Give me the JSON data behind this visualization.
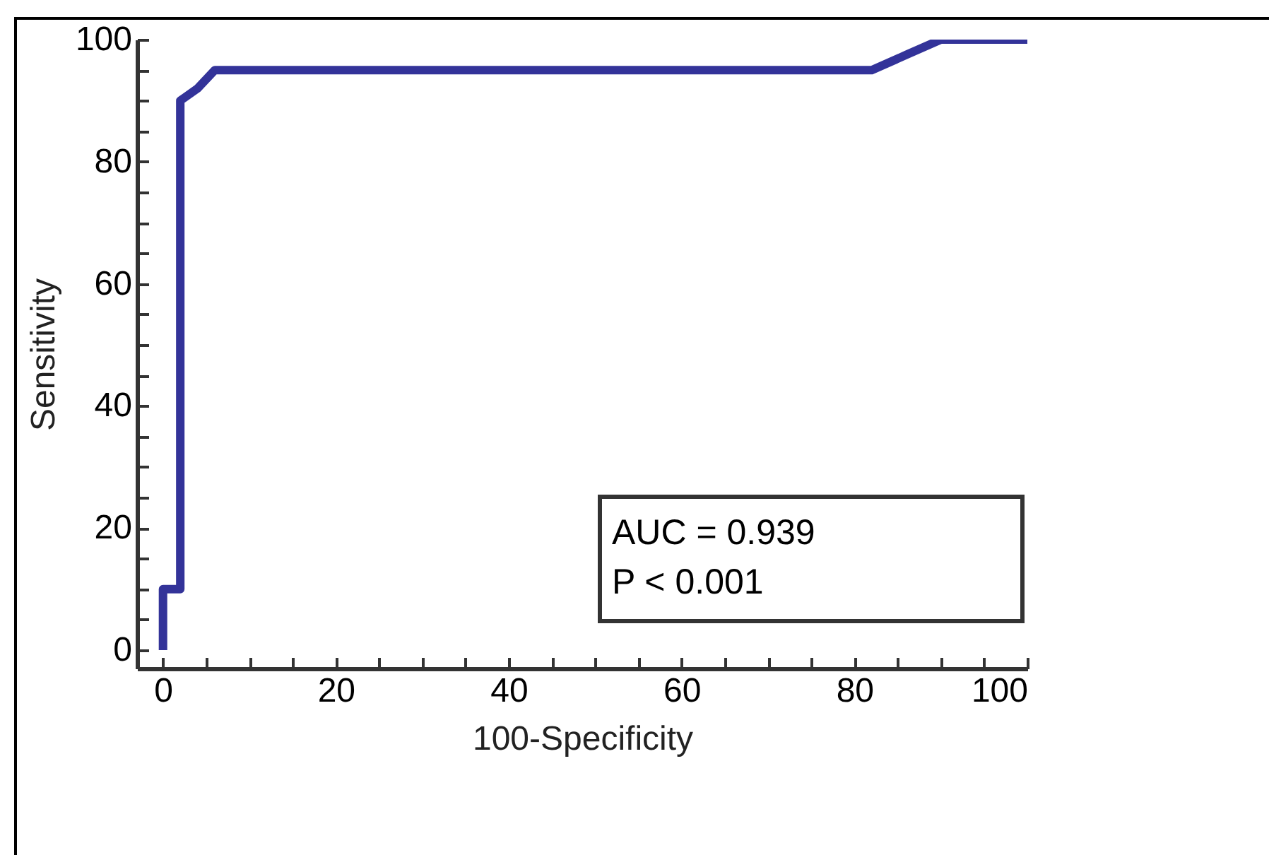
{
  "chart_data": {
    "type": "line",
    "xlabel": "100-Specificity",
    "ylabel": "Sensitivity",
    "x": [
      0,
      0,
      2,
      2,
      4,
      6,
      82,
      86,
      90,
      100
    ],
    "series": [
      {
        "color": "#333399",
        "values": [
          0,
          10,
          10,
          90,
          92,
          95,
          95,
          97.5,
          100,
          100
        ]
      }
    ],
    "xlim": [
      -3,
      100
    ],
    "ylim": [
      -3,
      100
    ],
    "xticks": [
      0,
      {
        "value": 5,
        "label": null
      },
      {
        "value": 10,
        "label": null
      },
      {
        "value": 15,
        "label": null
      },
      20,
      {
        "value": 25,
        "label": null
      },
      {
        "value": 30,
        "label": null
      },
      {
        "value": 35,
        "label": null
      },
      40,
      {
        "value": 45,
        "label": null
      },
      {
        "value": 50,
        "label": null
      },
      {
        "value": 55,
        "label": null
      },
      60,
      {
        "value": 65,
        "label": null
      },
      {
        "value": 70,
        "label": null
      },
      {
        "value": 75,
        "label": null
      },
      80,
      {
        "value": 85,
        "label": null
      },
      {
        "value": 90,
        "label": null
      },
      {
        "value": 95,
        "label": null
      },
      100
    ],
    "yticks": [
      0,
      {
        "value": 5,
        "label": null
      },
      {
        "value": 10,
        "label": null
      },
      {
        "value": 15,
        "label": null
      },
      20,
      {
        "value": 25,
        "label": null
      },
      {
        "value": 30,
        "label": null
      },
      {
        "value": 35,
        "label": null
      },
      40,
      {
        "value": 45,
        "label": null
      },
      {
        "value": 50,
        "label": null
      },
      {
        "value": 55,
        "label": null
      },
      60,
      {
        "value": 65,
        "label": null
      },
      {
        "value": 70,
        "label": null
      },
      {
        "value": 75,
        "label": null
      },
      80,
      {
        "value": 85,
        "label": null
      },
      {
        "value": 90,
        "label": null
      },
      {
        "value": 95,
        "label": null
      },
      100
    ],
    "annotations": [
      "AUC = 0.939",
      "P < 0.001"
    ],
    "grid": false,
    "marker": "none",
    "line_style": "solid"
  }
}
